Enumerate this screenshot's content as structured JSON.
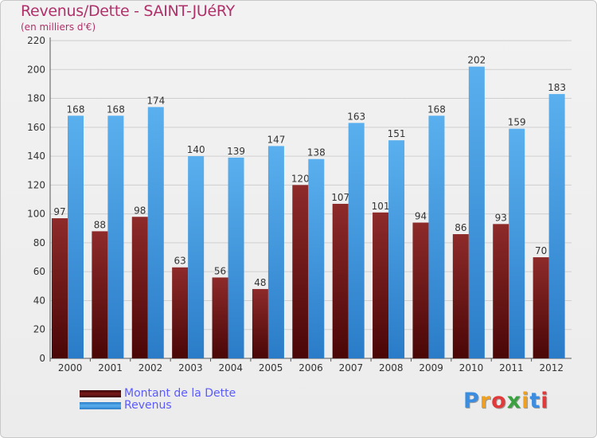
{
  "chart_data": {
    "type": "bar",
    "title": "Revenus/Dette - SAINT-JUéRY",
    "subtitle": "(en milliers d'€)",
    "categories": [
      "2000",
      "2001",
      "2002",
      "2003",
      "2004",
      "2005",
      "2006",
      "2007",
      "2008",
      "2009",
      "2010",
      "2011",
      "2012"
    ],
    "series": [
      {
        "name": "Montant de la Dette",
        "color": "#7a1a1a",
        "values": [
          97,
          88,
          98,
          63,
          56,
          48,
          120,
          107,
          101,
          94,
          86,
          93,
          70
        ]
      },
      {
        "name": "Revenus",
        "color": "#4da6e8",
        "values": [
          168,
          168,
          174,
          140,
          139,
          147,
          138,
          163,
          151,
          168,
          202,
          159,
          183
        ]
      }
    ],
    "ylim": [
      0,
      220
    ],
    "yticks": [
      0,
      20,
      40,
      60,
      80,
      100,
      120,
      140,
      160,
      180,
      200,
      220
    ],
    "grid": true,
    "legend_position": "bottom-left"
  },
  "logo": {
    "text": "Proxiti"
  }
}
